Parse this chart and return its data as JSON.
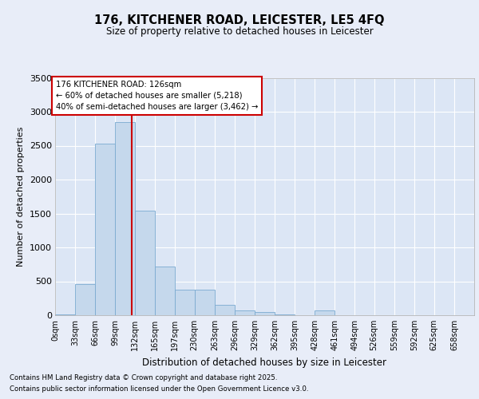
{
  "title_line1": "176, KITCHENER ROAD, LEICESTER, LE5 4FQ",
  "title_line2": "Size of property relative to detached houses in Leicester",
  "xlabel": "Distribution of detached houses by size in Leicester",
  "ylabel": "Number of detached properties",
  "footer_line1": "Contains HM Land Registry data © Crown copyright and database right 2025.",
  "footer_line2": "Contains public sector information licensed under the Open Government Licence v3.0.",
  "property_size": 126,
  "annotation_line1": "176 KITCHENER ROAD: 126sqm",
  "annotation_line2": "← 60% of detached houses are smaller (5,218)",
  "annotation_line3": "40% of semi-detached houses are larger (3,462) →",
  "bar_color": "#c5d8ec",
  "bar_edge_color": "#7aaad0",
  "vline_color": "#cc0000",
  "fig_bg_color": "#e8edf8",
  "ax_bg_color": "#dce6f5",
  "grid_color": "#ffffff",
  "categories": [
    "0sqm",
    "33sqm",
    "66sqm",
    "99sqm",
    "132sqm",
    "165sqm",
    "197sqm",
    "230sqm",
    "263sqm",
    "296sqm",
    "329sqm",
    "362sqm",
    "395sqm",
    "428sqm",
    "461sqm",
    "494sqm",
    "526sqm",
    "559sqm",
    "592sqm",
    "625sqm",
    "658sqm"
  ],
  "bin_edges": [
    0,
    33,
    66,
    99,
    132,
    165,
    197,
    230,
    263,
    296,
    329,
    362,
    395,
    428,
    461,
    494,
    526,
    559,
    592,
    625,
    658
  ],
  "values": [
    10,
    460,
    2530,
    2850,
    1540,
    720,
    380,
    375,
    150,
    75,
    50,
    10,
    5,
    75,
    5,
    3,
    3,
    3,
    3,
    3,
    3
  ],
  "ylim": [
    0,
    3500
  ],
  "yticks": [
    0,
    500,
    1000,
    1500,
    2000,
    2500,
    3000,
    3500
  ]
}
